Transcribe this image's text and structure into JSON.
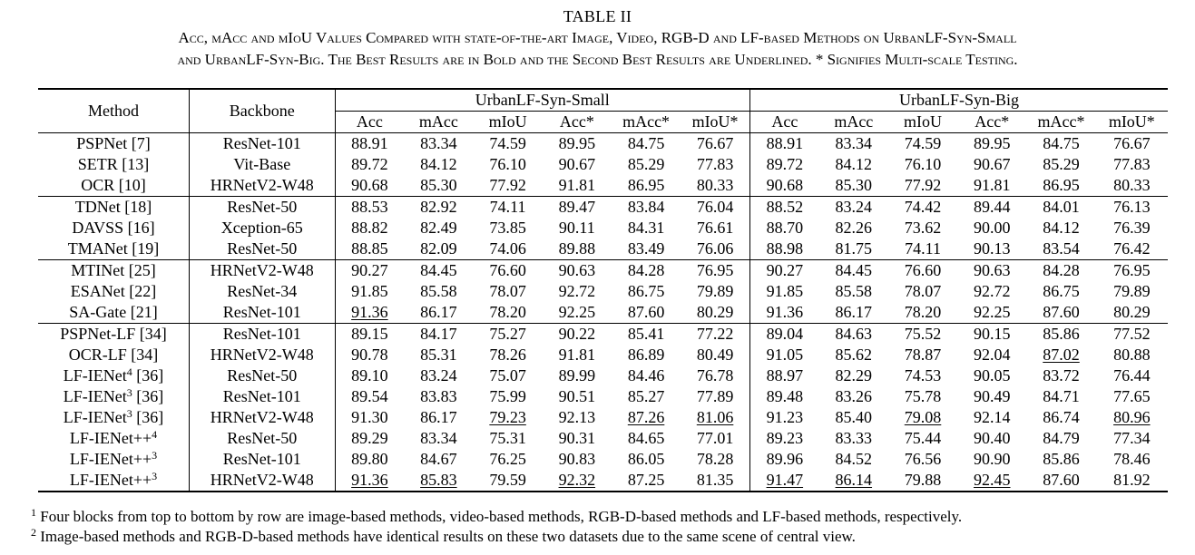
{
  "table_label": "TABLE II",
  "caption_line1": "Acc, mAcc and mIoU Values Compared with state-of-the-art Image, Video, RGB-D and LF-based Methods on UrbanLF-Syn-Small",
  "caption_line2": "and UrbanLF-Syn-Big. The Best Results are in Bold and the Second Best Results are Underlined. * Signifies Multi-scale Testing.",
  "headers": {
    "method": "Method",
    "backbone": "Backbone",
    "group_small": "UrbanLF-Syn-Small",
    "group_big": "UrbanLF-Syn-Big",
    "metrics": [
      "Acc",
      "mAcc",
      "mIoU",
      "Acc*",
      "mAcc*",
      "mIoU*"
    ]
  },
  "rows": [
    {
      "method": "PSPNet [7]",
      "sup": "",
      "method_tail": "",
      "backbone": "ResNet-101",
      "block_start": false,
      "values": [
        "88.91",
        "83.34",
        "74.59",
        "89.95",
        "84.75",
        "76.67",
        "88.91",
        "83.34",
        "74.59",
        "89.95",
        "84.75",
        "76.67"
      ],
      "bold": [],
      "underline": []
    },
    {
      "method": "SETR [13]",
      "sup": "",
      "method_tail": "",
      "backbone": "Vit-Base",
      "block_start": false,
      "values": [
        "89.72",
        "84.12",
        "76.10",
        "90.67",
        "85.29",
        "77.83",
        "89.72",
        "84.12",
        "76.10",
        "90.67",
        "85.29",
        "77.83"
      ],
      "bold": [],
      "underline": []
    },
    {
      "method": "OCR [10]",
      "sup": "",
      "method_tail": "",
      "backbone": "HRNetV2-W48",
      "block_start": false,
      "values": [
        "90.68",
        "85.30",
        "77.92",
        "91.81",
        "86.95",
        "80.33",
        "90.68",
        "85.30",
        "77.92",
        "91.81",
        "86.95",
        "80.33"
      ],
      "bold": [],
      "underline": []
    },
    {
      "method": "TDNet [18]",
      "sup": "",
      "method_tail": "",
      "backbone": "ResNet-50",
      "block_start": true,
      "values": [
        "88.53",
        "82.92",
        "74.11",
        "89.47",
        "83.84",
        "76.04",
        "88.52",
        "83.24",
        "74.42",
        "89.44",
        "84.01",
        "76.13"
      ],
      "bold": [],
      "underline": []
    },
    {
      "method": "DAVSS [16]",
      "sup": "",
      "method_tail": "",
      "backbone": "Xception-65",
      "block_start": false,
      "values": [
        "88.82",
        "82.49",
        "73.85",
        "90.11",
        "84.31",
        "76.61",
        "88.70",
        "82.26",
        "73.62",
        "90.00",
        "84.12",
        "76.39"
      ],
      "bold": [],
      "underline": []
    },
    {
      "method": "TMANet [19]",
      "sup": "",
      "method_tail": "",
      "backbone": "ResNet-50",
      "block_start": false,
      "values": [
        "88.85",
        "82.09",
        "74.06",
        "89.88",
        "83.49",
        "76.06",
        "88.98",
        "81.75",
        "74.11",
        "90.13",
        "83.54",
        "76.42"
      ],
      "bold": [],
      "underline": []
    },
    {
      "method": "MTINet [25]",
      "sup": "",
      "method_tail": "",
      "backbone": "HRNetV2-W48",
      "block_start": true,
      "values": [
        "90.27",
        "84.45",
        "76.60",
        "90.63",
        "84.28",
        "76.95",
        "90.27",
        "84.45",
        "76.60",
        "90.63",
        "84.28",
        "76.95"
      ],
      "bold": [],
      "underline": []
    },
    {
      "method": "ESANet [22]",
      "sup": "",
      "method_tail": "",
      "backbone": "ResNet-34",
      "block_start": false,
      "values": [
        "91.85",
        "85.58",
        "78.07",
        "92.72",
        "86.75",
        "79.89",
        "91.85",
        "85.58",
        "78.07",
        "92.72",
        "86.75",
        "79.89"
      ],
      "bold": [
        0,
        3,
        6,
        9
      ],
      "underline": []
    },
    {
      "method": "SA-Gate [21]",
      "sup": "",
      "method_tail": "",
      "backbone": "ResNet-101",
      "block_start": false,
      "values": [
        "91.36",
        "86.17",
        "78.20",
        "92.25",
        "87.60",
        "80.29",
        "91.36",
        "86.17",
        "78.20",
        "92.25",
        "87.60",
        "80.29"
      ],
      "bold": [
        1,
        4,
        7,
        10
      ],
      "underline": [
        0
      ]
    },
    {
      "method": "PSPNet-LF [34]",
      "sup": "",
      "method_tail": "",
      "backbone": "ResNet-101",
      "block_start": true,
      "values": [
        "89.15",
        "84.17",
        "75.27",
        "90.22",
        "85.41",
        "77.22",
        "89.04",
        "84.63",
        "75.52",
        "90.15",
        "85.86",
        "77.52"
      ],
      "bold": [],
      "underline": []
    },
    {
      "method": "OCR-LF [34]",
      "sup": "",
      "method_tail": "",
      "backbone": "HRNetV2-W48",
      "block_start": false,
      "values": [
        "90.78",
        "85.31",
        "78.26",
        "91.81",
        "86.89",
        "80.49",
        "91.05",
        "85.62",
        "78.87",
        "92.04",
        "87.02",
        "80.88"
      ],
      "bold": [],
      "underline": [
        10
      ]
    },
    {
      "method": "LF-IENet",
      "sup": "4",
      "method_tail": " [36]",
      "backbone": "ResNet-50",
      "block_start": false,
      "values": [
        "89.10",
        "83.24",
        "75.07",
        "89.99",
        "84.46",
        "76.78",
        "88.97",
        "82.29",
        "74.53",
        "90.05",
        "83.72",
        "76.44"
      ],
      "bold": [],
      "underline": []
    },
    {
      "method": "LF-IENet",
      "sup": "3",
      "method_tail": " [36]",
      "backbone": "ResNet-101",
      "block_start": false,
      "values": [
        "89.54",
        "83.83",
        "75.99",
        "90.51",
        "85.27",
        "77.89",
        "89.48",
        "83.26",
        "75.78",
        "90.49",
        "84.71",
        "77.65"
      ],
      "bold": [],
      "underline": []
    },
    {
      "method": "LF-IENet",
      "sup": "3",
      "method_tail": " [36]",
      "backbone": "HRNetV2-W48",
      "block_start": false,
      "values": [
        "91.30",
        "86.17",
        "79.23",
        "92.13",
        "87.26",
        "81.06",
        "91.23",
        "85.40",
        "79.08",
        "92.14",
        "86.74",
        "80.96"
      ],
      "bold": [
        1
      ],
      "underline": [
        2,
        4,
        5,
        8,
        11
      ]
    },
    {
      "method": "LF-IENet++",
      "sup": "4",
      "method_tail": "",
      "backbone": "ResNet-50",
      "block_start": false,
      "values": [
        "89.29",
        "83.34",
        "75.31",
        "90.31",
        "84.65",
        "77.01",
        "89.23",
        "83.33",
        "75.44",
        "90.40",
        "84.79",
        "77.34"
      ],
      "bold": [],
      "underline": []
    },
    {
      "method": "LF-IENet++",
      "sup": "3",
      "method_tail": "",
      "backbone": "ResNet-101",
      "block_start": false,
      "values": [
        "89.80",
        "84.67",
        "76.25",
        "90.83",
        "86.05",
        "78.28",
        "89.96",
        "84.52",
        "76.56",
        "90.90",
        "85.86",
        "78.46"
      ],
      "bold": [],
      "underline": []
    },
    {
      "method": "LF-IENet++",
      "sup": "3",
      "method_tail": "",
      "backbone": "HRNetV2-W48",
      "block_start": false,
      "values": [
        "91.36",
        "85.83",
        "79.59",
        "92.32",
        "87.25",
        "81.35",
        "91.47",
        "86.14",
        "79.88",
        "92.45",
        "87.60",
        "81.92"
      ],
      "bold": [
        2,
        5,
        8,
        10,
        11
      ],
      "underline": [
        0,
        1,
        3,
        6,
        7,
        9
      ]
    }
  ],
  "footnotes": [
    {
      "mark": "1",
      "text": " Four blocks from top to bottom by row are image-based methods, video-based methods, RGB-D-based methods and LF-based methods, respectively."
    },
    {
      "mark": "2",
      "text": " Image-based methods and RGB-D-based methods have identical results on these two datasets due to the same scene of central view."
    }
  ]
}
